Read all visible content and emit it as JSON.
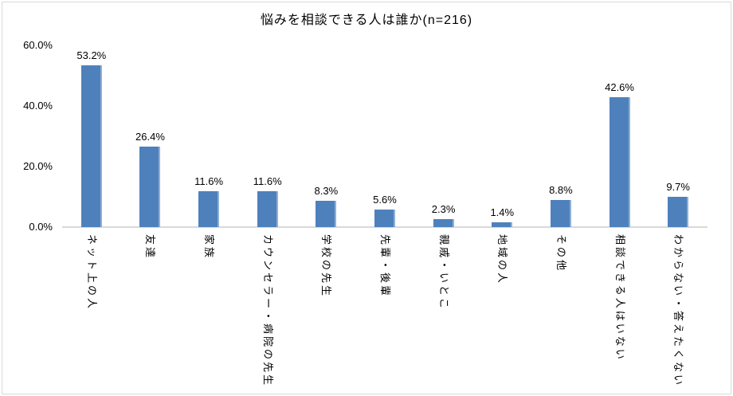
{
  "chart": {
    "title": "悩みを相談できる人は誰か(n=216)"
  },
  "chart_data": {
    "type": "bar",
    "title": "悩みを相談できる人は誰か(n=216)",
    "categories": [
      "ネット上の人",
      "友達",
      "家族",
      "カウンセラー・病院の先生",
      "学校の先生",
      "先輩・後輩",
      "親戚・いとこ",
      "地域の人",
      "その他",
      "相談できる人はいない",
      "わからない・答えたくない"
    ],
    "values": [
      53.2,
      26.4,
      11.6,
      11.6,
      8.3,
      5.6,
      2.3,
      1.4,
      8.8,
      42.6,
      9.7
    ],
    "data_labels": [
      "53.2%",
      "26.4%",
      "11.6%",
      "11.6%",
      "8.3%",
      "5.6%",
      "2.3%",
      "1.4%",
      "8.8%",
      "42.6%",
      "9.7%"
    ],
    "y_ticks": [
      "60.0%",
      "40.0%",
      "20.0%",
      "0.0%"
    ],
    "y_tick_values": [
      60,
      40,
      20,
      0
    ],
    "ylim": [
      0,
      60
    ],
    "xlabel": "",
    "ylabel": "",
    "grid": false,
    "legend": false,
    "bar_color": "#4E81BC",
    "axis_line_color": "#D9D9D9"
  }
}
